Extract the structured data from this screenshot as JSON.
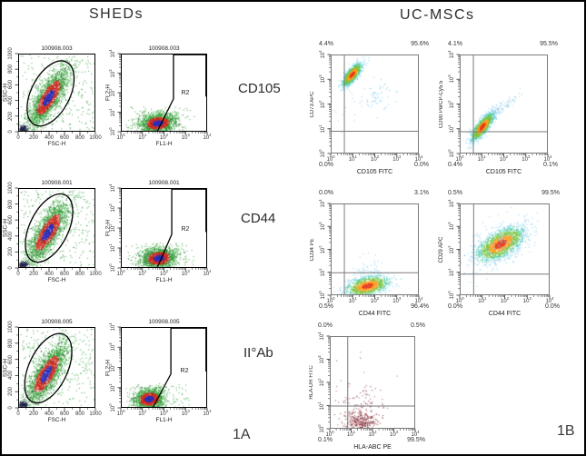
{
  "header": {
    "left_title": "SHEDs",
    "right_title": "UC-MSCs"
  },
  "row_labels": [
    "CD105",
    "CD44",
    "II°Ab"
  ],
  "panel_labels": {
    "left": "1A",
    "right": "1B"
  },
  "colors": {
    "figure_border": "#000000",
    "left_plot_axis": "#000000",
    "right_plot_axis": "#7a7a7a",
    "palettes": {
      "sheds": {
        "core": "#2c2fbe",
        "mid": "#cf2a1c",
        "outer": "#2f9e33"
      },
      "heat": [
        "#e83a1d",
        "#ff9d1f",
        "#76c43d",
        "#3ec8a8",
        "#7fd3f2"
      ],
      "cyan": "#7cc4ea",
      "green": "#2f9e33",
      "debris": "#20204a",
      "maroon": [
        "#8f2b3c",
        "#a8494f",
        "#63202e"
      ]
    }
  },
  "chart_data": [
    {
      "id": "sheds-cd105-fsc-ssc",
      "type": "scatter",
      "panel": "SHEDs",
      "row": "CD105",
      "title": "100908.003",
      "xlabel": "FSC-H",
      "ylabel": "SSC-H",
      "scale": "linear",
      "xlim": [
        0,
        1000
      ],
      "ylim": [
        0,
        1000
      ],
      "ticks": [
        "0",
        "200",
        "400",
        "600",
        "800",
        "1000"
      ],
      "gate": {
        "type": "ellipse",
        "cx": 0.42,
        "cy": 0.51,
        "rx": 0.25,
        "ry": 0.45,
        "rot": 27
      },
      "clusters": [
        {
          "n": 2200,
          "cx": 390,
          "cy": 440,
          "sx": 210,
          "sy": 70,
          "rot": 58,
          "palette": "sheds"
        },
        {
          "n": 160,
          "cx": 60,
          "cy": 40,
          "sx": 35,
          "sy": 22,
          "rot": 0,
          "palette": "debris"
        },
        {
          "n": 300,
          "uniform": true,
          "x0": 30,
          "x1": 1000,
          "y0": 30,
          "y1": 1000,
          "palette": "green"
        }
      ]
    },
    {
      "id": "sheds-cd105-fl1-fl2",
      "type": "scatter",
      "panel": "SHEDs",
      "row": "CD105",
      "title": "100908.003",
      "xlabel": "FL1-H",
      "ylabel": "FL2-H",
      "scale": "log",
      "decades": [
        0,
        1,
        2,
        3,
        4
      ],
      "gate": {
        "type": "polygon",
        "label": "R2",
        "points": [
          [
            0.61,
            0
          ],
          [
            0.61,
            0.58
          ],
          [
            0.42,
            1
          ]
        ],
        "label_pos": [
          0.7,
          0.46
        ]
      },
      "clusters": [
        {
          "n": 1600,
          "cx": 1.7,
          "cy": 0.45,
          "sx": 0.42,
          "sy": 0.25,
          "rot": 8,
          "palette": "sheds"
        },
        {
          "n": 90,
          "uniform": true,
          "x0": 0.2,
          "x1": 3.4,
          "y0": 0,
          "y1": 1.3,
          "palette": "green"
        }
      ]
    },
    {
      "id": "sheds-cd44-fsc-ssc",
      "type": "scatter",
      "panel": "SHEDs",
      "row": "CD44",
      "title": "100908.001",
      "xlabel": "FSC-H",
      "ylabel": "SSC-H",
      "scale": "linear",
      "xlim": [
        0,
        1000
      ],
      "ylim": [
        0,
        1000
      ],
      "ticks": [
        "0",
        "200",
        "400",
        "600",
        "800",
        "1000"
      ],
      "gate": {
        "type": "ellipse",
        "cx": 0.4,
        "cy": 0.5,
        "rx": 0.25,
        "ry": 0.46,
        "rot": 26
      },
      "clusters": [
        {
          "n": 2200,
          "cx": 380,
          "cy": 450,
          "sx": 215,
          "sy": 72,
          "rot": 57,
          "palette": "sheds"
        },
        {
          "n": 150,
          "cx": 60,
          "cy": 40,
          "sx": 32,
          "sy": 20,
          "rot": 0,
          "palette": "debris"
        },
        {
          "n": 300,
          "uniform": true,
          "x0": 30,
          "x1": 1000,
          "y0": 30,
          "y1": 1000,
          "palette": "green"
        }
      ]
    },
    {
      "id": "sheds-cd44-fl1-fl2",
      "type": "scatter",
      "panel": "SHEDs",
      "row": "CD44",
      "title": "100908.001",
      "xlabel": "FL1-H",
      "ylabel": "FL2-H",
      "scale": "log",
      "decades": [
        0,
        1,
        2,
        3,
        4
      ],
      "gate": {
        "type": "polygon",
        "label": "R2",
        "points": [
          [
            0.59,
            0
          ],
          [
            0.59,
            0.58
          ],
          [
            0.42,
            1
          ]
        ],
        "label_pos": [
          0.7,
          0.48
        ]
      },
      "clusters": [
        {
          "n": 1600,
          "cx": 1.75,
          "cy": 0.5,
          "sx": 0.42,
          "sy": 0.26,
          "rot": 8,
          "palette": "sheds"
        },
        {
          "n": 90,
          "uniform": true,
          "x0": 0.2,
          "x1": 3.4,
          "y0": 0,
          "y1": 1.3,
          "palette": "green"
        }
      ]
    },
    {
      "id": "sheds-iiab-fsc-ssc",
      "type": "scatter",
      "panel": "SHEDs",
      "row": "II°Ab",
      "title": "100908.005",
      "xlabel": "FSC-H",
      "ylabel": "SSC-H",
      "scale": "linear",
      "xlim": [
        0,
        1000
      ],
      "ylim": [
        0,
        1000
      ],
      "ticks": [
        "0",
        "200",
        "400",
        "600",
        "800",
        "1000"
      ],
      "gate": {
        "type": "ellipse",
        "cx": 0.39,
        "cy": 0.51,
        "rx": 0.25,
        "ry": 0.46,
        "rot": 25
      },
      "clusters": [
        {
          "n": 2200,
          "cx": 360,
          "cy": 420,
          "sx": 215,
          "sy": 72,
          "rot": 58,
          "palette": "sheds"
        },
        {
          "n": 150,
          "cx": 60,
          "cy": 40,
          "sx": 32,
          "sy": 20,
          "rot": 0,
          "palette": "debris"
        },
        {
          "n": 300,
          "uniform": true,
          "x0": 30,
          "x1": 1000,
          "y0": 30,
          "y1": 1000,
          "palette": "green"
        }
      ]
    },
    {
      "id": "sheds-iiab-fl1-fl2",
      "type": "scatter",
      "panel": "SHEDs",
      "row": "II°Ab",
      "title": "100908.005",
      "xlabel": "FL1-H",
      "ylabel": "FL2-H",
      "scale": "log",
      "decades": [
        0,
        1,
        2,
        3,
        4
      ],
      "gate": {
        "type": "polygon",
        "label": "R2",
        "points": [
          [
            0.58,
            0
          ],
          [
            0.58,
            0.58
          ],
          [
            0.37,
            1
          ]
        ],
        "label_pos": [
          0.69,
          0.5
        ]
      },
      "clusters": [
        {
          "n": 1500,
          "cx": 1.3,
          "cy": 0.45,
          "sx": 0.36,
          "sy": 0.26,
          "rot": 8,
          "palette": "sheds"
        },
        {
          "n": 90,
          "uniform": true,
          "x0": 0.2,
          "x1": 3.2,
          "y0": 0,
          "y1": 1.2,
          "palette": "green"
        }
      ]
    },
    {
      "id": "ucmsc-cd73-vs-cd105",
      "type": "scatter",
      "panel": "UC-MSCs",
      "row": "CD105",
      "xlabel": "CD105 FITC",
      "ylabel": "CD73 APC",
      "scale": "log",
      "decades": [
        0,
        1,
        2,
        3,
        4
      ],
      "percents": {
        "tl": "4.4%",
        "tr": "95.6%",
        "bl": "0.0%",
        "br": "0.0%"
      },
      "gate": {
        "type": "quadrant",
        "vx": 0.62,
        "hy": 0.9
      },
      "clusters": [
        {
          "n": 1100,
          "cx": 0.95,
          "cy": 3.2,
          "sx": 0.3,
          "sy": 0.11,
          "rot": 47,
          "palette": "heat"
        },
        {
          "n": 65,
          "cx": 1.9,
          "cy": 2.25,
          "sx": 0.5,
          "sy": 0.28,
          "rot": 25,
          "palette": "cyan"
        },
        {
          "n": 10,
          "uniform": true,
          "x0": 0.1,
          "x1": 1.2,
          "y0": 0.8,
          "y1": 2.6,
          "palette": "cyan"
        }
      ]
    },
    {
      "id": "ucmsc-cd90-vs-cd105",
      "type": "scatter",
      "panel": "UC-MSCs",
      "row": "CD105",
      "xlabel": "CD105 FITC",
      "ylabel": "CD90 PerCP-Cy5.5",
      "scale": "log",
      "decades": [
        0,
        1,
        2,
        3,
        4
      ],
      "percents": {
        "tl": "4.1%",
        "tr": "95.5%",
        "bl": "0.4%",
        "br": "0.1%"
      },
      "gate": {
        "type": "quadrant",
        "vx": 0.62,
        "hy": 0.88
      },
      "clusters": [
        {
          "n": 1300,
          "cx": 1.02,
          "cy": 1.1,
          "sx": 0.36,
          "sy": 0.12,
          "rot": 48,
          "palette": "heat"
        },
        {
          "n": 90,
          "cx": 1.8,
          "cy": 1.8,
          "sx": 0.5,
          "sy": 0.1,
          "rot": 33,
          "palette": "cyan"
        }
      ]
    },
    {
      "id": "ucmsc-cd34-vs-cd44",
      "type": "scatter",
      "panel": "UC-MSCs",
      "row": "CD44",
      "xlabel": "CD44 FITC",
      "ylabel": "CD34 PE",
      "scale": "log",
      "decades": [
        0,
        1,
        2,
        3,
        4
      ],
      "percents": {
        "tl": "0.0%",
        "tr": "3.1%",
        "bl": "0.5%",
        "br": "96.4%"
      },
      "gate": {
        "type": "quadrant",
        "vx": 0.62,
        "hy": 0.98
      },
      "clusters": [
        {
          "n": 1250,
          "cx": 1.65,
          "cy": 0.42,
          "sx": 0.5,
          "sy": 0.2,
          "rot": 12,
          "palette": "heat"
        },
        {
          "n": 60,
          "cx": 1.65,
          "cy": 1.05,
          "sx": 0.4,
          "sy": 0.35,
          "rot": 0,
          "palette": "cyan"
        }
      ]
    },
    {
      "id": "ucmsc-cd29-vs-cd44",
      "type": "scatter",
      "panel": "UC-MSCs",
      "row": "CD44",
      "xlabel": "CD44 FITC",
      "ylabel": "CD29 APC",
      "scale": "log",
      "decades": [
        0,
        1,
        2,
        3,
        4
      ],
      "percents": {
        "tl": "0.5%",
        "tr": "99.5%",
        "bl": "0.0%",
        "br": "0.0%"
      },
      "gate": {
        "type": "quadrant",
        "vx": 0.62,
        "hy": 0.92
      },
      "clusters": [
        {
          "n": 1900,
          "cx": 1.8,
          "cy": 2.25,
          "sx": 0.58,
          "sy": 0.27,
          "rot": 30,
          "palette": "heat"
        },
        {
          "n": 180,
          "cx": 1.8,
          "cy": 2.25,
          "sx": 0.85,
          "sy": 0.45,
          "rot": 30,
          "palette": "cyan"
        }
      ]
    },
    {
      "id": "ucmsc-hladr-vs-hlaabc",
      "type": "scatter",
      "panel": "UC-MSCs",
      "row": "II°Ab",
      "xlabel": "HLA-ABC PE",
      "ylabel": "HLA-DR FITC",
      "scale": "log",
      "decades": [
        0,
        1,
        2,
        3,
        4
      ],
      "percents": {
        "tl": "0.0%",
        "tr": "0.5%",
        "bl": "0.1%",
        "br": "99.5%"
      },
      "gate": {
        "type": "quadrant",
        "vx": 0.84,
        "hy": 0.98
      },
      "clusters": [
        {
          "n": 360,
          "cx": 1.45,
          "cy": 0.3,
          "sx": 0.38,
          "sy": 0.26,
          "rot": 0,
          "palette": "maroon"
        },
        {
          "n": 85,
          "cx": 1.5,
          "cy": 1.0,
          "sx": 0.45,
          "sy": 0.5,
          "rot": 0,
          "palette": "maroon"
        },
        {
          "n": 14,
          "uniform": true,
          "x0": 0.2,
          "x1": 3.2,
          "y0": 0.2,
          "y1": 3.4,
          "palette": "maroon"
        }
      ]
    }
  ]
}
